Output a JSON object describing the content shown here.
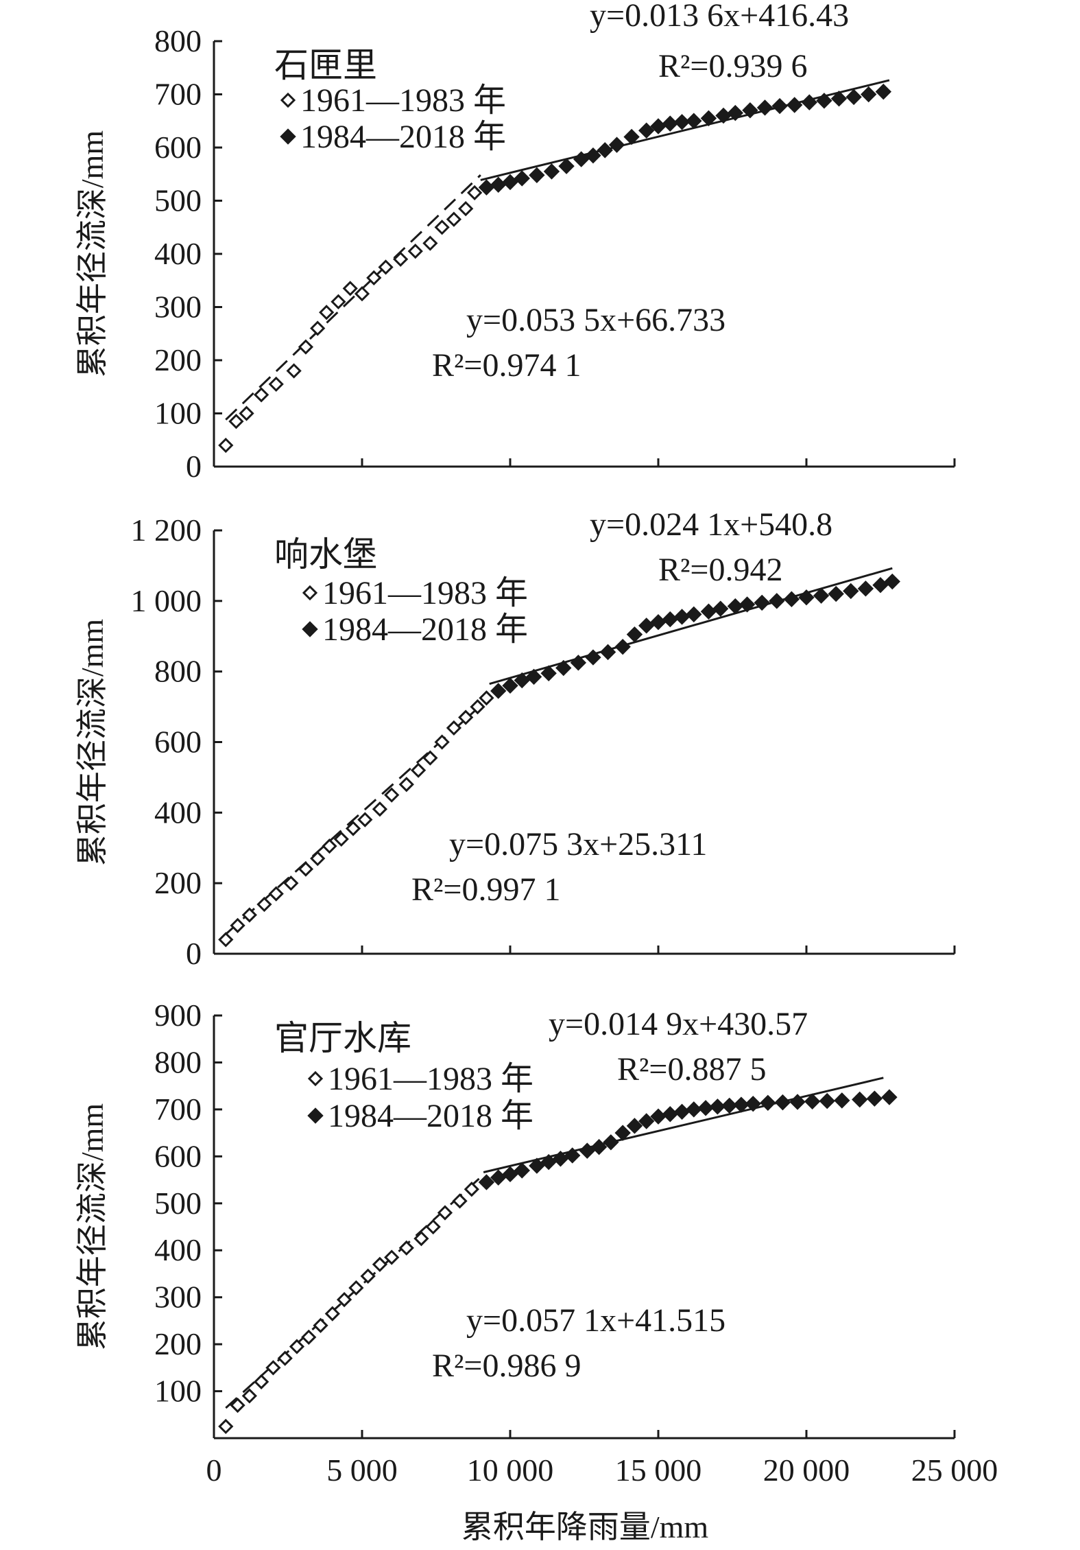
{
  "axis": {
    "x_label": "累积年降雨量/mm",
    "y_label": "累积年径流深/mm",
    "x_ticks": [
      "0",
      "5 000",
      "10 000",
      "15 000",
      "20 000",
      "25 000"
    ],
    "x_values": [
      0,
      5000,
      10000,
      15000,
      20000,
      25000
    ]
  },
  "legend": {
    "period1": "1961—1983 年",
    "period2": "1984—2018 年"
  },
  "colors": {
    "ink": "#1a1a1a",
    "background": "#ffffff"
  },
  "chart_data": [
    {
      "type": "scatter",
      "title": "石匣里",
      "xlabel": "累积年降雨量/mm",
      "ylabel": "累积年径流深/mm",
      "xlim": [
        0,
        25000
      ],
      "ylim": [
        0,
        800
      ],
      "y_ticks": [
        "0",
        "100",
        "200",
        "300",
        "400",
        "500",
        "600",
        "700",
        "800"
      ],
      "y_values": [
        0,
        100,
        200,
        300,
        400,
        500,
        600,
        700,
        800
      ],
      "series": [
        {
          "name": "1961—1983 年",
          "marker": "open-diamond",
          "x": [
            400,
            750,
            1100,
            1600,
            2100,
            2700,
            3100,
            3500,
            3800,
            4200,
            4600,
            5000,
            5400,
            5800,
            6300,
            6800,
            7300,
            7700,
            8100,
            8500,
            8800
          ],
          "y": [
            40,
            85,
            100,
            135,
            155,
            180,
            225,
            260,
            290,
            310,
            335,
            325,
            355,
            375,
            390,
            405,
            420,
            450,
            465,
            485,
            515
          ]
        },
        {
          "name": "1984—2018 年",
          "marker": "filled-diamond",
          "x": [
            9200,
            9600,
            10000,
            10400,
            10900,
            11400,
            11900,
            12400,
            12800,
            13200,
            13600,
            14100,
            14600,
            15000,
            15400,
            15800,
            16200,
            16700,
            17200,
            17600,
            18100,
            18600,
            19100,
            19600,
            20100,
            20600,
            21100,
            21600,
            22100,
            22600
          ],
          "y": [
            525,
            530,
            535,
            542,
            548,
            555,
            565,
            578,
            585,
            595,
            605,
            620,
            632,
            640,
            645,
            648,
            650,
            655,
            660,
            665,
            670,
            675,
            678,
            680,
            685,
            688,
            692,
            695,
            700,
            705
          ]
        }
      ],
      "fits": [
        {
          "equation": "y=0.053 5x+66.733",
          "r2": "R²=0.974 1",
          "x_range": [
            400,
            9000
          ],
          "slope": 0.0535,
          "intercept": 66.733,
          "style": "dashed"
        },
        {
          "equation": "y=0.013 6x+416.43",
          "r2": "R²=0.939 6",
          "x_range": [
            9000,
            22800
          ],
          "slope": 0.0136,
          "intercept": 416.43,
          "style": "solid"
        }
      ]
    },
    {
      "type": "scatter",
      "title": "响水堡",
      "xlabel": "累积年降雨量/mm",
      "ylabel": "累积年径流深/mm",
      "xlim": [
        0,
        25000
      ],
      "ylim": [
        0,
        1200
      ],
      "y_ticks": [
        "0",
        "200",
        "400",
        "600",
        "800",
        "1 000",
        "1 200"
      ],
      "y_values": [
        0,
        200,
        400,
        600,
        800,
        1000,
        1200
      ],
      "series": [
        {
          "name": "1961—1983 年",
          "marker": "open-diamond",
          "x": [
            400,
            800,
            1200,
            1700,
            2100,
            2600,
            3100,
            3500,
            3900,
            4300,
            4700,
            5100,
            5600,
            6000,
            6500,
            6900,
            7300,
            7700,
            8100,
            8500,
            8900,
            9200
          ],
          "y": [
            40,
            80,
            110,
            140,
            170,
            200,
            240,
            270,
            305,
            325,
            355,
            380,
            410,
            450,
            480,
            520,
            555,
            600,
            640,
            670,
            700,
            725
          ]
        },
        {
          "name": "1984—2018 年",
          "marker": "filled-diamond",
          "x": [
            9600,
            10000,
            10400,
            10800,
            11300,
            11800,
            12300,
            12800,
            13300,
            13800,
            14200,
            14600,
            15000,
            15400,
            15800,
            16200,
            16700,
            17100,
            17600,
            18000,
            18500,
            19000,
            19500,
            20000,
            20500,
            21000,
            21500,
            22000,
            22500,
            22900
          ],
          "y": [
            745,
            760,
            775,
            785,
            795,
            810,
            825,
            840,
            855,
            870,
            905,
            930,
            940,
            948,
            955,
            962,
            970,
            978,
            985,
            990,
            995,
            1000,
            1005,
            1010,
            1015,
            1020,
            1028,
            1035,
            1045,
            1055
          ]
        }
      ],
      "fits": [
        {
          "equation": "y=0.075 3x+25.311",
          "r2": "R²=0.997 1",
          "x_range": [
            400,
            9300
          ],
          "slope": 0.0753,
          "intercept": 25.311,
          "style": "dashed"
        },
        {
          "equation": "y=0.024 1x+540.8",
          "r2": "R²=0.942",
          "x_range": [
            9300,
            22900
          ],
          "slope": 0.0241,
          "intercept": 540.8,
          "style": "solid"
        }
      ]
    },
    {
      "type": "scatter",
      "title": "官厅水库",
      "xlabel": "累积年降雨量/mm",
      "ylabel": "累积年径流深/mm",
      "xlim": [
        0,
        25000
      ],
      "ylim": [
        0,
        900
      ],
      "y_ticks": [
        "100",
        "200",
        "300",
        "400",
        "500",
        "600",
        "700",
        "800",
        "900"
      ],
      "y_values": [
        100,
        200,
        300,
        400,
        500,
        600,
        700,
        800,
        900
      ],
      "series": [
        {
          "name": "1961—1983 年",
          "marker": "open-diamond",
          "x": [
            400,
            800,
            1200,
            1600,
            2000,
            2400,
            2800,
            3200,
            3600,
            4000,
            4400,
            4800,
            5200,
            5600,
            6000,
            6500,
            7000,
            7400,
            7800,
            8300,
            8700
          ],
          "y": [
            25,
            70,
            90,
            120,
            150,
            170,
            195,
            215,
            240,
            265,
            295,
            320,
            345,
            370,
            385,
            405,
            425,
            450,
            480,
            505,
            530
          ]
        },
        {
          "name": "1984—2018 年",
          "marker": "filled-diamond",
          "x": [
            9200,
            9600,
            10000,
            10400,
            10900,
            11300,
            11700,
            12100,
            12600,
            13000,
            13400,
            13800,
            14200,
            14600,
            15000,
            15400,
            15800,
            16200,
            16600,
            17000,
            17400,
            17800,
            18200,
            18700,
            19200,
            19700,
            20200,
            20700,
            21200,
            21800,
            22300,
            22800
          ],
          "y": [
            545,
            555,
            562,
            570,
            580,
            588,
            595,
            602,
            612,
            620,
            630,
            650,
            665,
            675,
            685,
            690,
            695,
            700,
            703,
            706,
            708,
            710,
            712,
            714,
            715,
            716,
            717,
            718,
            719,
            721,
            723,
            726
          ]
        }
      ],
      "fits": [
        {
          "equation": "y=0.057 1x+41.515",
          "r2": "R²=0.986 9",
          "x_range": [
            400,
            9100
          ],
          "slope": 0.0571,
          "intercept": 41.515,
          "style": "dashed"
        },
        {
          "equation": "y=0.014 9x+430.57",
          "r2": "R²=0.887 5",
          "x_range": [
            9100,
            22600
          ],
          "slope": 0.0149,
          "intercept": 430.57,
          "style": "solid"
        }
      ]
    }
  ]
}
